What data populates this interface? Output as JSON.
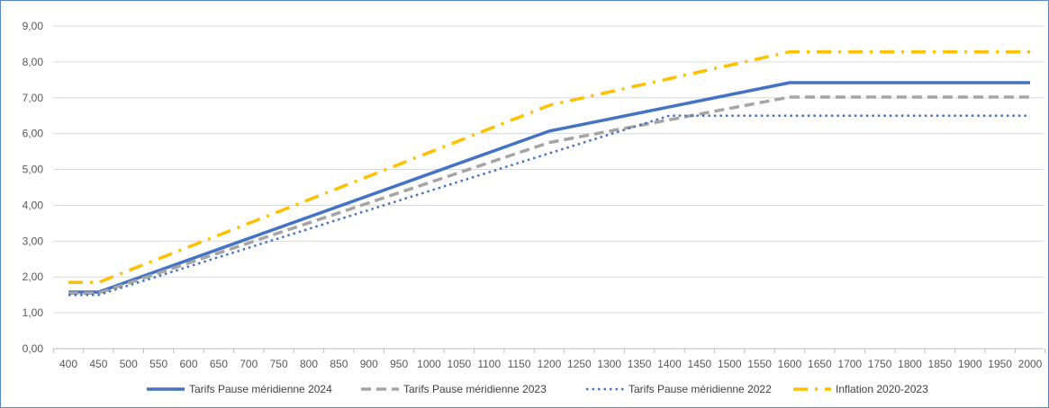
{
  "chart_data": {
    "type": "line",
    "x": [
      400,
      450,
      500,
      550,
      600,
      650,
      700,
      750,
      800,
      850,
      900,
      950,
      1000,
      1050,
      1100,
      1150,
      1200,
      1250,
      1300,
      1350,
      1400,
      1450,
      1500,
      1550,
      1600,
      1650,
      1700,
      1750,
      1800,
      1850,
      1900,
      1950,
      2000
    ],
    "x_tick_labels": [
      "400",
      "450",
      "500",
      "550",
      "600",
      "650",
      "700",
      "750",
      "800",
      "850",
      "900",
      "950",
      "1000",
      "1050",
      "1100",
      "1150",
      "1200",
      "1250",
      "1300",
      "1350",
      "1400",
      "1450",
      "1500",
      "1550",
      "1600",
      "1650",
      "1700",
      "1750",
      "1800",
      "1850",
      "1900",
      "1950",
      "2000"
    ],
    "ylim": [
      0,
      9
    ],
    "y_ticks": [
      0,
      1,
      2,
      3,
      4,
      5,
      6,
      7,
      8,
      9
    ],
    "y_tick_labels": [
      "0,00",
      "1,00",
      "2,00",
      "3,00",
      "4,00",
      "5,00",
      "6,00",
      "7,00",
      "8,00",
      "9,00"
    ],
    "grid": "horizontal",
    "legend_position": "bottom",
    "series": [
      {
        "name": "Tarifs Pause méridienne 2024",
        "color": "#4472c4",
        "style": "solid",
        "points": [
          [
            400,
            1.58
          ],
          [
            450,
            1.58
          ],
          [
            1200,
            6.07
          ],
          [
            1600,
            7.42
          ],
          [
            2000,
            7.42
          ]
        ]
      },
      {
        "name": "Tarifs Pause méridienne 2023",
        "color": "#a5a5a5",
        "style": "dashed",
        "points": [
          [
            400,
            1.55
          ],
          [
            450,
            1.55
          ],
          [
            1200,
            5.75
          ],
          [
            1600,
            7.02
          ],
          [
            2000,
            7.02
          ]
        ]
      },
      {
        "name": "Tarifs Pause méridienne 2022",
        "color": "#4472c4",
        "style": "dotted",
        "points": [
          [
            400,
            1.5
          ],
          [
            450,
            1.5
          ],
          [
            1200,
            5.45
          ],
          [
            1400,
            6.5
          ],
          [
            2000,
            6.5
          ]
        ]
      },
      {
        "name": "Inflation 2020-2023",
        "color": "#ffc000",
        "style": "dashdot",
        "points": [
          [
            400,
            1.85
          ],
          [
            450,
            1.85
          ],
          [
            1200,
            6.79
          ],
          [
            1600,
            8.28
          ],
          [
            2000,
            8.28
          ]
        ]
      }
    ]
  }
}
